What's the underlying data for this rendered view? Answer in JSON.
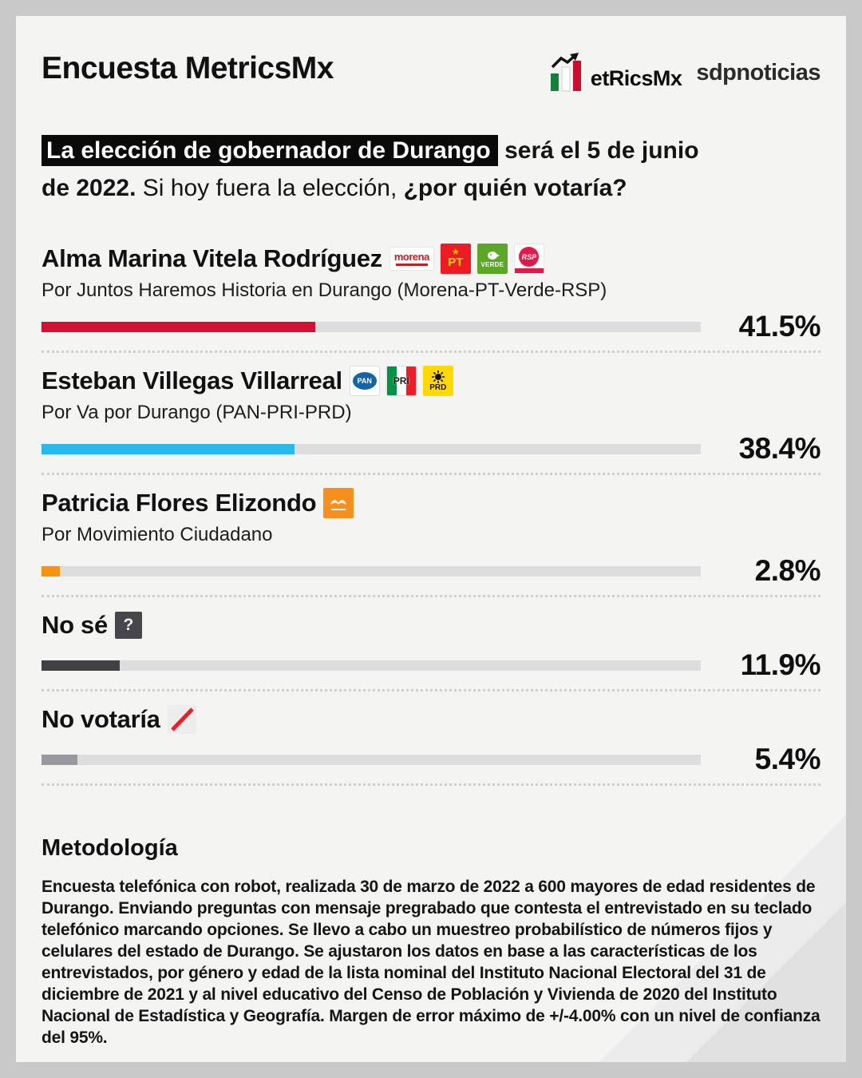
{
  "header": {
    "title": "Encuesta MetricsMx",
    "brand_logo_text": "etRicsMx",
    "partner_logo_text": "sdpnoticias"
  },
  "question": {
    "highlight": "La elección de gobernador de Durango",
    "bold_after_highlight": " será el 5 de junio",
    "bold_line2": "de 2022.",
    "normal": " Si hoy fuera la elección, ",
    "bold_end": "¿por quién votaría?"
  },
  "results": [
    {
      "name": "Alma Marina Vitela Rodríguez",
      "party_line": "Por Juntos Haremos Historia en Durango (Morena-PT-Verde-RSP)",
      "value": 41.5,
      "label": "41.5%",
      "color": "#d01135"
    },
    {
      "name": "Esteban Villegas Villarreal",
      "party_line": "Por Va por Durango (PAN-PRI-PRD)",
      "value": 38.4,
      "label": "38.4%",
      "color": "#29b9ed"
    },
    {
      "name": "Patricia Flores Elizondo",
      "party_line": "Por Movimiento Ciudadano",
      "value": 2.8,
      "label": "2.8%",
      "color": "#f7930d"
    },
    {
      "name": "No sé",
      "party_line": "",
      "value": 11.9,
      "label": "11.9%",
      "color": "#404045"
    },
    {
      "name": "No votaría",
      "party_line": "",
      "value": 5.4,
      "label": "5.4%",
      "color": "#98989e"
    }
  ],
  "logo_labels": {
    "morena": "morena",
    "pt": "PT",
    "pt_star": "★",
    "verde": "VERDE",
    "rsp": "RSP",
    "pan": "PAN",
    "pri": "PRI",
    "prd": "PRD",
    "question_mark": "?"
  },
  "methodology": {
    "heading": "Metodología",
    "body": "Encuesta telefónica con robot, realizada 30 de marzo de 2022 a 600 mayores de edad residentes de Durango. Enviando preguntas con mensaje pregrabado que contesta el entrevistado en su teclado telefónico marcando opciones. Se llevo a cabo un muestreo probabilístico de números fijos y celulares del estado de Durango. Se ajustaron los datos en base a las características de los entrevistados, por género y edad de la lista nominal del Instituto Nacional Electoral del 31 de diciembre de 2021 y al nivel educativo del Censo de Población y Vivienda de 2020 del Instituto Nacional de Estadística y Geografía. Margen de error máximo de +/-4.00% con un nivel de confianza del 95%."
  },
  "chart_data": {
    "type": "bar",
    "orientation": "horizontal",
    "title": "La elección de gobernador de Durango será el 5 de junio de 2022. Si hoy fuera la elección, ¿por quién votaría?",
    "categories": [
      "Alma Marina Vitela Rodríguez — Por Juntos Haremos Historia en Durango (Morena-PT-Verde-RSP)",
      "Esteban Villegas Villarreal — Por Va por Durango (PAN-PRI-PRD)",
      "Patricia Flores Elizondo — Por Movimiento Ciudadano",
      "No sé",
      "No votaría"
    ],
    "values": [
      41.5,
      38.4,
      2.8,
      11.9,
      5.4
    ],
    "unit": "%",
    "xlim": [
      0,
      100
    ],
    "bar_colors": [
      "#d01135",
      "#29b9ed",
      "#f7930d",
      "#404045",
      "#98989e"
    ],
    "track_color": "#dddddd",
    "legend": "none",
    "grid": false
  }
}
